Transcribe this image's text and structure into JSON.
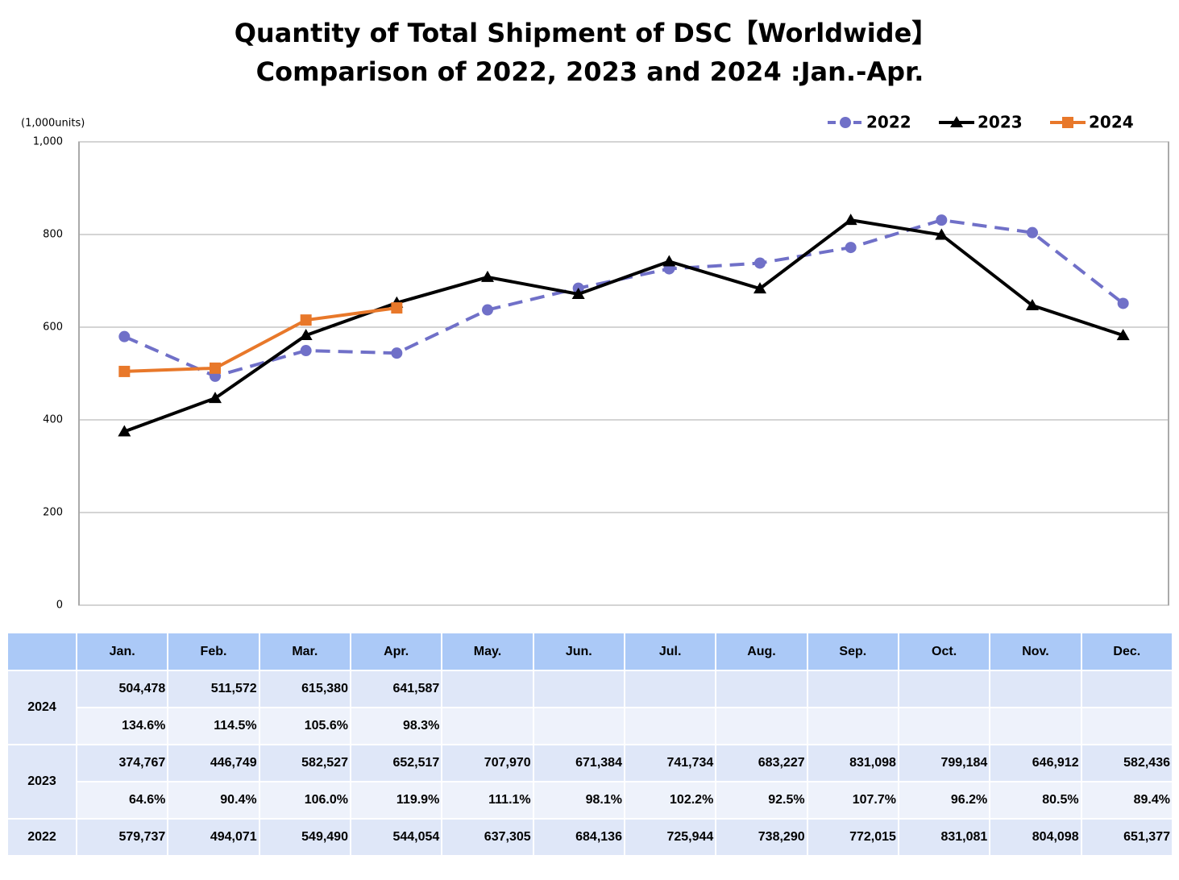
{
  "chart_data": {
    "type": "line",
    "title": "Quantity of Total Shipment of DSC【Worldwide】",
    "subtitle": "Comparison of 2022, 2023 and 2024 :Jan.-Apr.",
    "y_label": "(1,000units)",
    "categories": [
      "Jan.",
      "Feb.",
      "Mar.",
      "Apr.",
      "May.",
      "Jun.",
      "Jul.",
      "Aug.",
      "Sep.",
      "Oct.",
      "Nov.",
      "Dec."
    ],
    "ylim": [
      0,
      1000
    ],
    "yticks": [
      0,
      200,
      400,
      600,
      800,
      {
        "value": 1000,
        "label": "1,000"
      }
    ],
    "grid": true,
    "legend": "top-right",
    "series": [
      {
        "name": "2022",
        "color": "#7070c8",
        "dash": true,
        "marker": "circle",
        "values": [
          579.737,
          494.071,
          549.49,
          544.054,
          637.305,
          684.136,
          725.944,
          738.29,
          772.015,
          831.081,
          804.098,
          651.377
        ],
        "value_labels": [
          "579,737",
          "494,071",
          "549,490",
          "544,054",
          "637,305",
          "684,136",
          "725,944",
          "738,290",
          "772,015",
          "831,081",
          "804,098",
          "651,377"
        ]
      },
      {
        "name": "2023",
        "color": "#000000",
        "dash": false,
        "marker": "triangle",
        "values": [
          374.767,
          446.749,
          582.527,
          652.517,
          707.97,
          671.384,
          741.734,
          683.227,
          831.098,
          799.184,
          646.912,
          582.436
        ],
        "value_labels": [
          "374,767",
          "446,749",
          "582,527",
          "652,517",
          "707,970",
          "671,384",
          "741,734",
          "683,227",
          "831,098",
          "799,184",
          "646,912",
          "582,436"
        ],
        "ratios": [
          "64.6%",
          "90.4%",
          "106.0%",
          "119.9%",
          "111.1%",
          "98.1%",
          "102.2%",
          "92.5%",
          "107.7%",
          "96.2%",
          "80.5%",
          "89.4%"
        ]
      },
      {
        "name": "2024",
        "color": "#e8782a",
        "dash": false,
        "marker": "square",
        "values": [
          504.478,
          511.572,
          615.38,
          641.587,
          null,
          null,
          null,
          null,
          null,
          null,
          null,
          null
        ],
        "value_labels": [
          "504,478",
          "511,572",
          "615,380",
          "641,587",
          null,
          null,
          null,
          null,
          null,
          null,
          null,
          null
        ],
        "ratios": [
          "134.6%",
          "114.5%",
          "105.6%",
          "98.3%",
          null,
          null,
          null,
          null,
          null,
          null,
          null,
          null
        ]
      }
    ]
  }
}
